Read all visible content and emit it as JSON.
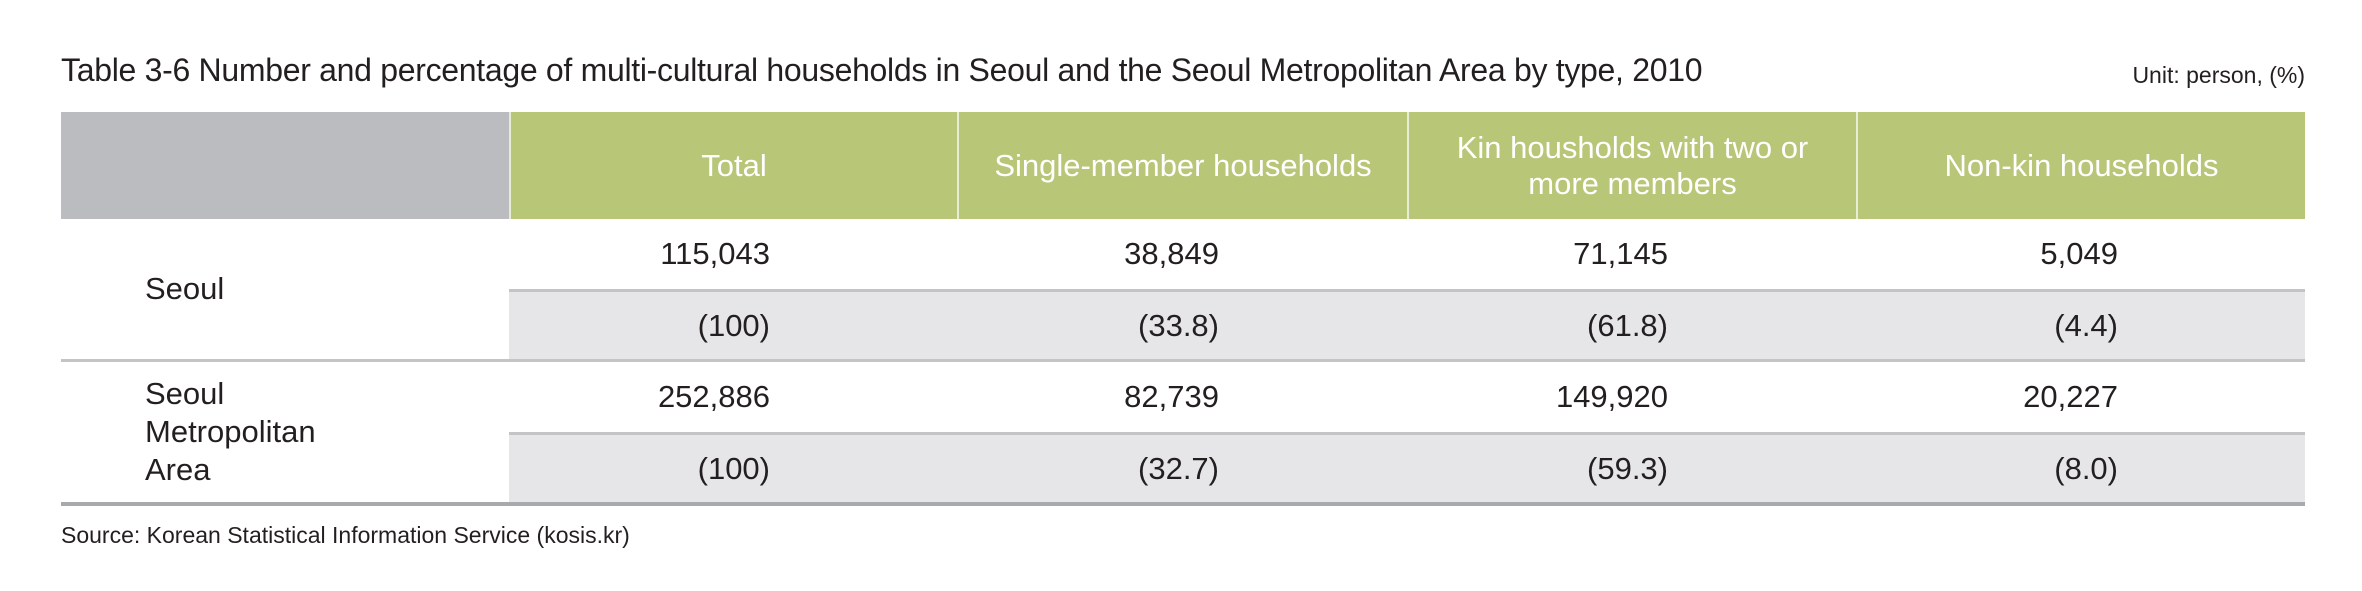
{
  "title": "Table 3-6  Number and percentage of multi-cultural households in Seoul and the Seoul Metropolitan Area by type, 2010",
  "unit": "Unit: person, (%)",
  "colors": {
    "header_green": "#b8c677",
    "header_stub_gray": "#bbbcc0",
    "percent_row_bg": "#e6e6e8"
  },
  "table": {
    "columns": [
      "Total",
      "Single-member households",
      "Kin housholds with two or more members",
      "Non-kin households"
    ],
    "rows": [
      {
        "region": "Seoul",
        "counts": [
          "115,043",
          "38,849",
          "71,145",
          "5,049"
        ],
        "percents": [
          "(100)",
          "(33.8)",
          "(61.8)",
          "(4.4)"
        ]
      },
      {
        "region": "Seoul Metropolitan Area",
        "counts": [
          "252,886",
          "82,739",
          "149,920",
          "20,227"
        ],
        "percents": [
          "(100)",
          "(32.7)",
          "(59.3)",
          "(8.0)"
        ]
      }
    ]
  },
  "source": "Source: Korean Statistical Information Service (kosis.kr)"
}
